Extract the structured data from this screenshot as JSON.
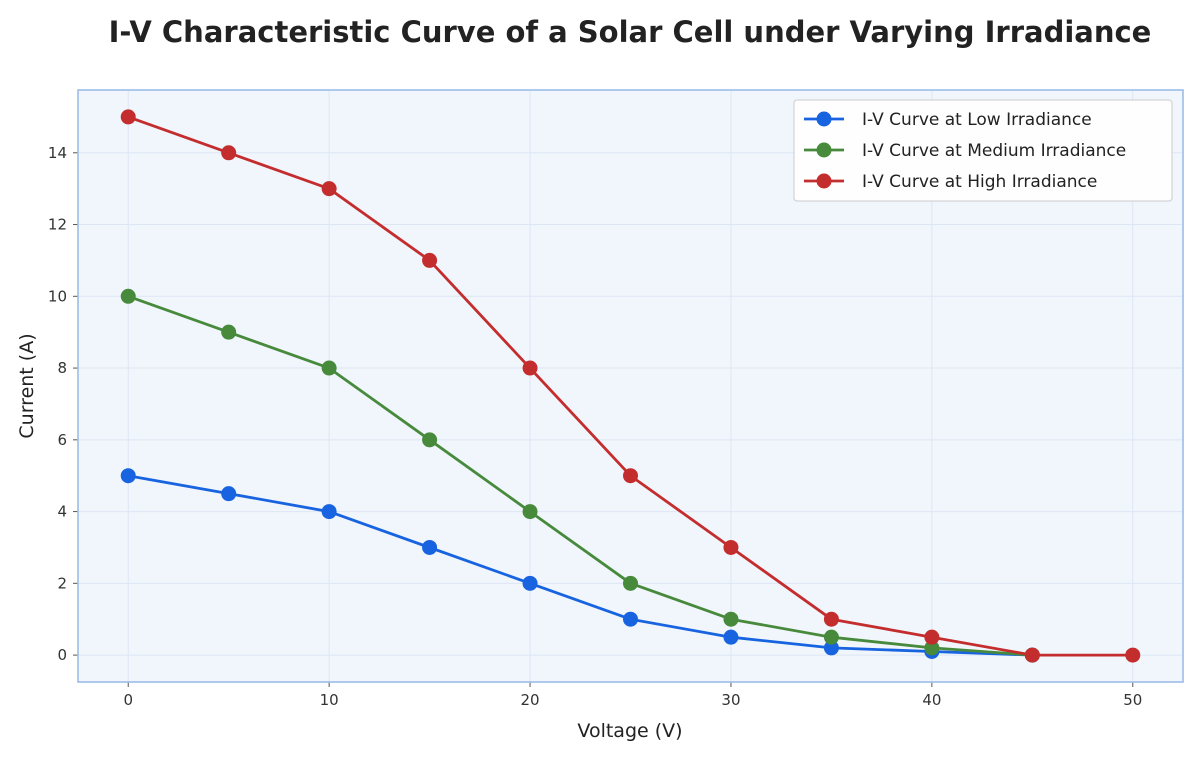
{
  "chart_data": {
    "type": "line",
    "title": "I-V Characteristic Curve of a Solar Cell under Varying Irradiance",
    "xlabel": "Voltage (V)",
    "ylabel": "Current (A)",
    "xlim": [
      -2.5,
      52.5
    ],
    "ylim": [
      -0.75,
      15.75
    ],
    "xticks": [
      0,
      10,
      20,
      30,
      40,
      50
    ],
    "yticks": [
      0,
      2,
      4,
      6,
      8,
      10,
      12,
      14
    ],
    "grid": true,
    "legend_position": "top-right",
    "colors": {
      "plot_background": "#f1f6fc",
      "frame": "#9dbde8",
      "grid": "#dde6f5"
    },
    "series": [
      {
        "name": "I-V Curve at Low Irradiance",
        "color": "#1763e0",
        "x": [
          0,
          5,
          10,
          15,
          20,
          25,
          30,
          35,
          40,
          45
        ],
        "y": [
          5,
          4.5,
          4,
          3,
          2,
          1,
          0.5,
          0.2,
          0.1,
          0
        ]
      },
      {
        "name": "I-V Curve at Medium Irradiance",
        "color": "#478a3c",
        "x": [
          0,
          5,
          10,
          15,
          20,
          25,
          30,
          35,
          40,
          45
        ],
        "y": [
          10,
          9,
          8,
          6,
          4,
          2,
          1,
          0.5,
          0.2,
          0
        ]
      },
      {
        "name": "I-V Curve at High Irradiance",
        "color": "#c42d2d",
        "x": [
          0,
          5,
          10,
          15,
          20,
          25,
          30,
          35,
          40,
          45,
          50
        ],
        "y": [
          15,
          14,
          13,
          11,
          8,
          5,
          3,
          1,
          0.5,
          0,
          0
        ]
      }
    ]
  }
}
